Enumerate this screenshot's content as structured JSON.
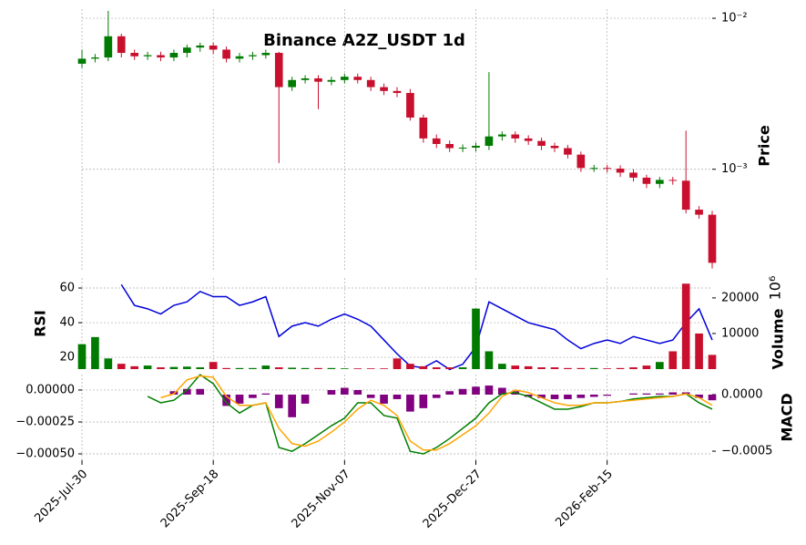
{
  "chart_data": [
    {
      "type": "candlestick",
      "title": "Binance A2Z_USDT 1d",
      "ylabel": "Price",
      "x": [
        "2025-Jul-30",
        "2025-Aug-04",
        "2025-Aug-09",
        "2025-Aug-14",
        "2025-Aug-19",
        "2025-Aug-24",
        "2025-Aug-29",
        "2025-Sep-03",
        "2025-Sep-08",
        "2025-Sep-13",
        "2025-Sep-18",
        "2025-Sep-23",
        "2025-Sep-28",
        "2025-Oct-03",
        "2025-Oct-08",
        "2025-Oct-13",
        "2025-Oct-18",
        "2025-Oct-23",
        "2025-Oct-28",
        "2025-Nov-02",
        "2025-Nov-07",
        "2025-Nov-12",
        "2025-Nov-17",
        "2025-Nov-22",
        "2025-Nov-27",
        "2025-Dec-02",
        "2025-Dec-07",
        "2025-Dec-12",
        "2025-Dec-17",
        "2025-Dec-22",
        "2025-Dec-27",
        "2026-Jan-01",
        "2026-Jan-06",
        "2026-Jan-11",
        "2026-Jan-16",
        "2026-Jan-21",
        "2026-Jan-26",
        "2026-Jan-31",
        "2026-Feb-05",
        "2026-Feb-10",
        "2026-Feb-15",
        "2026-Feb-20",
        "2026-Feb-25",
        "2026-Mar-02",
        "2026-Mar-07",
        "2026-Mar-12",
        "2026-Mar-17",
        "2026-Mar-22",
        "2026-Mar-27"
      ],
      "xticks": [
        "2025-Jul-30",
        "2025-Sep-18",
        "2025-Nov-07",
        "2025-Dec-27",
        "2026-Feb-15"
      ],
      "open": [
        0.005,
        0.0054,
        0.0055,
        0.0076,
        0.0059,
        0.0056,
        0.0057,
        0.0055,
        0.0059,
        0.0064,
        0.0066,
        0.0062,
        0.0054,
        0.0056,
        0.0057,
        0.0059,
        0.0035,
        0.0039,
        0.004,
        0.0038,
        0.0039,
        0.0041,
        0.0039,
        0.0035,
        0.0033,
        0.0032,
        0.0022,
        0.0016,
        0.00147,
        0.00138,
        0.00139,
        0.00143,
        0.00165,
        0.0017,
        0.0016,
        0.00154,
        0.00143,
        0.00138,
        0.00125,
        0.00102,
        0.00102,
        0.00101,
        0.00095,
        0.00088,
        0.0008,
        0.00085,
        0.00084,
        0.00054,
        0.0005
      ],
      "high": [
        0.0062,
        0.0058,
        0.0112,
        0.0079,
        0.0062,
        0.006,
        0.006,
        0.0062,
        0.0067,
        0.0069,
        0.0069,
        0.0065,
        0.0059,
        0.006,
        0.0062,
        0.006,
        0.0041,
        0.0042,
        0.0042,
        0.0041,
        0.0043,
        0.0043,
        0.0041,
        0.0037,
        0.0035,
        0.0034,
        0.0023,
        0.0017,
        0.00155,
        0.00146,
        0.0015,
        0.0044,
        0.00178,
        0.00178,
        0.00168,
        0.00162,
        0.0015,
        0.00145,
        0.00131,
        0.00107,
        0.00107,
        0.00106,
        0.001,
        0.00092,
        0.00089,
        0.00089,
        0.0018,
        0.00057,
        0.00053
      ],
      "low": [
        0.0047,
        0.0051,
        0.0052,
        0.0055,
        0.0053,
        0.0053,
        0.0052,
        0.0052,
        0.0055,
        0.006,
        0.0058,
        0.0051,
        0.0051,
        0.0053,
        0.0054,
        0.0011,
        0.0033,
        0.0037,
        0.0025,
        0.0036,
        0.0037,
        0.0037,
        0.0033,
        0.0031,
        0.003,
        0.0021,
        0.0015,
        0.00138,
        0.0013,
        0.0013,
        0.00131,
        0.00134,
        0.00155,
        0.0015,
        0.00145,
        0.00134,
        0.0013,
        0.00118,
        0.00096,
        0.00096,
        0.00095,
        0.00089,
        0.00083,
        0.00075,
        0.00075,
        0.00079,
        0.00051,
        0.00047,
        0.00022
      ],
      "close": [
        0.0054,
        0.0055,
        0.0076,
        0.0059,
        0.0056,
        0.0057,
        0.0055,
        0.0059,
        0.0064,
        0.0066,
        0.0062,
        0.0054,
        0.0056,
        0.0057,
        0.0059,
        0.0035,
        0.0039,
        0.004,
        0.0038,
        0.0039,
        0.0041,
        0.0039,
        0.0035,
        0.0033,
        0.0032,
        0.0022,
        0.0016,
        0.00147,
        0.00138,
        0.00139,
        0.00143,
        0.00165,
        0.0017,
        0.0016,
        0.00154,
        0.00143,
        0.00138,
        0.00125,
        0.00102,
        0.00102,
        0.00101,
        0.00095,
        0.00088,
        0.0008,
        0.00085,
        0.00084,
        0.00054,
        0.0005,
        0.00024
      ],
      "up_color": "#007a00",
      "down_color": "#c8102e",
      "log": true,
      "ylim": [
        0.00021,
        0.0115
      ],
      "yticks": [
        {
          "value": 0.01,
          "label": "10⁻²"
        },
        {
          "value": 0.001,
          "label": "10⁻³"
        }
      ],
      "grid": true
    },
    {
      "type": "line",
      "ylabel": "RSI",
      "color": "#0000dd",
      "values": [
        null,
        null,
        null,
        62,
        50,
        48,
        45,
        50,
        52,
        58,
        55,
        55,
        50,
        52,
        55,
        32,
        38,
        40,
        38,
        42,
        45,
        42,
        38,
        30,
        22,
        15,
        14,
        18,
        13,
        16,
        26,
        52,
        48,
        44,
        40,
        38,
        36,
        30,
        25,
        28,
        30,
        28,
        32,
        30,
        28,
        30,
        40,
        48,
        30
      ],
      "ylim": [
        13.2,
        65.8
      ],
      "yticks": [
        20,
        40,
        60
      ],
      "grid": true
    },
    {
      "type": "bar",
      "ylabel": "Volume",
      "unit_label": "10⁶",
      "values": [
        7000,
        9000,
        3000,
        1500,
        800,
        1000,
        500,
        600,
        700,
        500,
        2000,
        300,
        300,
        300,
        1000,
        500,
        400,
        300,
        300,
        300,
        200,
        200,
        200,
        200,
        3000,
        1500,
        800,
        500,
        500,
        500,
        17000,
        5000,
        1500,
        1000,
        800,
        500,
        500,
        300,
        300,
        300,
        200,
        300,
        500,
        1000,
        2000,
        5000,
        24000,
        10000,
        4000
      ],
      "ylim": [
        0,
        25600
      ],
      "yticks": [
        10000,
        20000
      ]
    },
    {
      "type": "line",
      "ylabel": "MACD",
      "series": [
        {
          "color": "#008000",
          "values": [
            null,
            null,
            null,
            null,
            null,
            -5e-05,
            -0.0001,
            -8e-05,
            0.0,
            0.00012,
            5e-05,
            -0.0001,
            -0.00018,
            -0.00012,
            -0.0001,
            -0.00045,
            -0.00048,
            -0.00042,
            -0.00035,
            -0.00028,
            -0.00022,
            -0.0001,
            -0.0001,
            -0.0002,
            -0.00022,
            -0.00048,
            -0.0005,
            -0.00045,
            -0.00038,
            -0.0003,
            -0.00022,
            -0.0001,
            -3e-05,
            -2e-05,
            -5e-05,
            -0.0001,
            -0.00015,
            -0.00015,
            -0.00013,
            -0.0001,
            -0.0001,
            -9e-05,
            -7e-05,
            -6e-05,
            -5e-05,
            -5e-05,
            -3e-05,
            -0.0001,
            -0.00015
          ]
        },
        {
          "color": "#ffa500",
          "values": [
            null,
            null,
            null,
            null,
            null,
            null,
            -6e-05,
            -3e-05,
            8e-05,
            0.00011,
            0.0001,
            -5e-05,
            -0.00012,
            -0.00012,
            -0.0001,
            -0.0003,
            -0.00042,
            -0.00044,
            -0.0004,
            -0.00033,
            -0.00025,
            -0.00015,
            -8e-05,
            -0.00012,
            -0.0002,
            -0.0004,
            -0.00047,
            -0.00047,
            -0.00042,
            -0.00035,
            -0.00028,
            -0.00018,
            -5e-05,
            0.0,
            -2e-05,
            -6e-05,
            -0.0001,
            -0.00012,
            -0.00012,
            -0.0001,
            -0.0001,
            -9e-05,
            -8e-05,
            -7e-05,
            -6e-05,
            -5e-05,
            -3e-05,
            -6e-05,
            -0.00012
          ]
        }
      ],
      "bars": {
        "color": "#800080",
        "axis": "y2",
        "values": [
          null,
          null,
          null,
          null,
          null,
          null,
          null,
          3e-05,
          5e-05,
          5e-05,
          0.0,
          -0.0001,
          -8e-05,
          -3e-05,
          1e-05,
          -0.00012,
          -0.0002,
          -8e-05,
          0.0,
          4e-05,
          6e-05,
          4e-05,
          -3e-05,
          -8e-05,
          -4e-05,
          -0.00015,
          -0.00012,
          -3e-05,
          3e-05,
          5e-05,
          7e-05,
          8e-05,
          6e-05,
          3e-05,
          -2e-05,
          -3e-05,
          -4e-05,
          -4e-05,
          -3e-05,
          -2e-05,
          -1e-05,
          0.0,
          1e-05,
          1e-05,
          1e-05,
          2e-05,
          2e-05,
          -3e-05,
          -5e-05
        ]
      },
      "ylim": [
        -0.00055,
        0.000121
      ],
      "yticks": [
        {
          "value": 0,
          "label": "0.00000"
        },
        {
          "value": -0.00025,
          "label": "−0.00025"
        },
        {
          "value": -0.0005,
          "label": "−0.00050"
        }
      ],
      "y2lim": [
        -0.00058,
        0.000177
      ],
      "y2ticks": [
        {
          "value": 0,
          "label": "0.0000"
        },
        {
          "value": -0.0005,
          "label": "−0.0005"
        }
      ],
      "grid": true
    }
  ]
}
